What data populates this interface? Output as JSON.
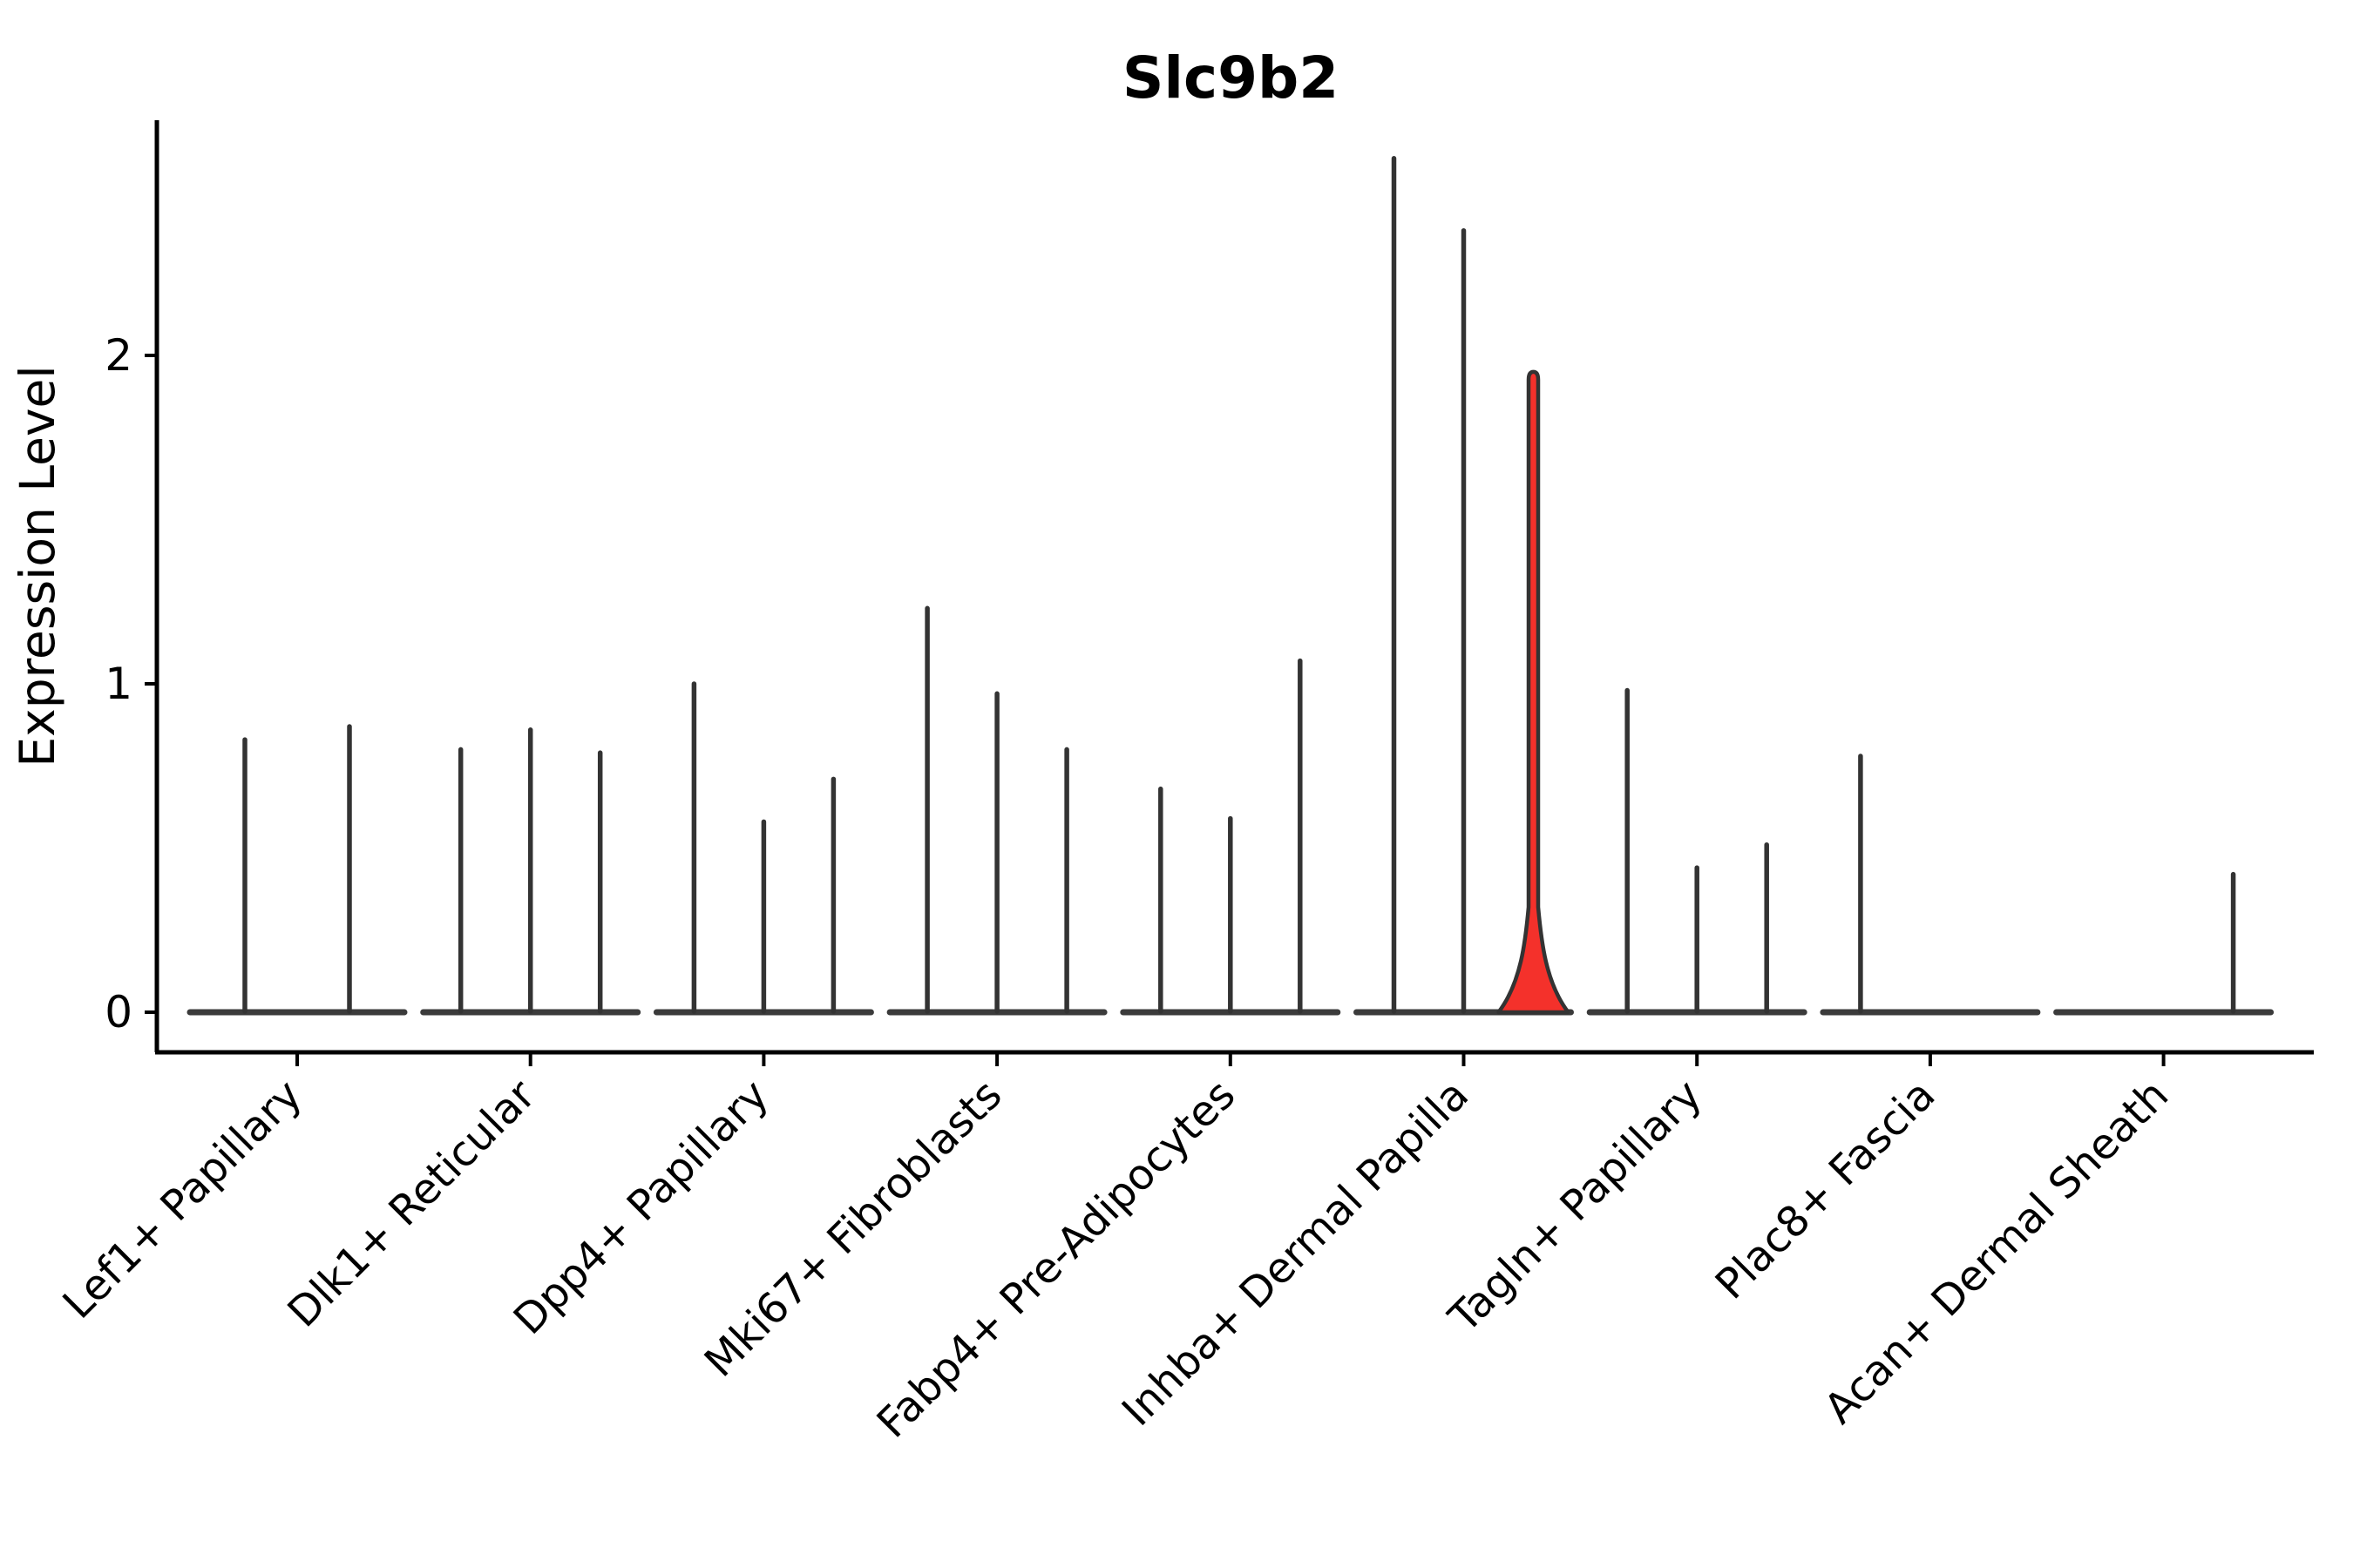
{
  "figure": {
    "title": "Slc9b2",
    "ylabel": "Expression Level"
  },
  "chart_data": {
    "type": "violin",
    "title": "Slc9b2",
    "xlabel": "",
    "ylabel": "Expression Level",
    "ytick_labels": [
      "0",
      "1",
      "2"
    ],
    "ytick_values": [
      0,
      1,
      2
    ],
    "ylim": [
      -0.12,
      2.72
    ],
    "grid": false,
    "legend_position": "none",
    "categories": [
      "Lef1+ Papillary",
      "Dlk1+ Reticular",
      "Dpp4+ Papillary",
      "Mki67+ Fibroblasts",
      "Fabp4+ Pre-Adipocytes",
      "Inhba+ Dermal Papilla",
      "Tagln+ Papillary",
      "Plac8+ Fascia",
      "Acan+ Dermal Sheath"
    ],
    "groups": [
      {
        "label": "Lef1+ Papillary",
        "violin_max_values": [
          0.83,
          0.87
        ]
      },
      {
        "label": "Dlk1+ Reticular",
        "violin_max_values": [
          0.8,
          0.86,
          0.79
        ]
      },
      {
        "label": "Dpp4+ Papillary",
        "violin_max_values": [
          1.0,
          0.58,
          0.71
        ]
      },
      {
        "label": "Mki67+ Fibroblasts",
        "violin_max_values": [
          1.23,
          0.97,
          0.8
        ]
      },
      {
        "label": "Fabp4+ Pre-Adipocytes",
        "violin_max_values": [
          0.68,
          0.59,
          1.07
        ]
      },
      {
        "label": "Inhba+ Dermal Papilla",
        "violin_max_values": [
          2.6,
          2.38,
          1.95
        ]
      },
      {
        "label": "Tagln+ Papillary",
        "violin_max_values": [
          0.98,
          0.44,
          0.51
        ]
      },
      {
        "label": "Plac8+ Fascia",
        "violin_max_values": [
          0.78,
          0.0,
          0.0
        ]
      },
      {
        "label": "Acan+ Dermal Sheath",
        "violin_max_values": [
          0.0,
          0.0,
          0.42
        ]
      }
    ],
    "highlighted_violin": {
      "group": "Inhba+ Dermal Papilla",
      "group_index": 5,
      "violin_index": 2,
      "max": 1.95,
      "bulge_top_value": 0.32
    },
    "colors": {
      "violin_line": "#333333",
      "baseline": "#3b3b3b",
      "axis": "#000000",
      "highlight_fill": "#f4312b",
      "background": "#ffffff"
    }
  }
}
